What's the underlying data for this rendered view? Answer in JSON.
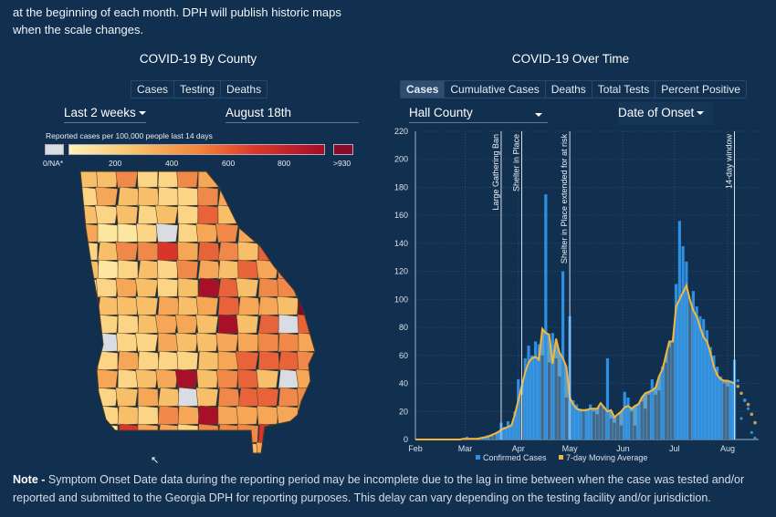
{
  "intro_text": [
    "at the beginning of each month. DPH will publish historic maps",
    "when the scale changes."
  ],
  "county_panel": {
    "title": "COVID-19 By County",
    "tabs": [
      {
        "label": "Cases",
        "active": false
      },
      {
        "label": "Testing",
        "active": false
      },
      {
        "label": "Deaths",
        "active": false
      }
    ],
    "period_dropdown": "Last 2 weeks",
    "date_dropdown": "August 18th",
    "legend": {
      "title": "Reported cases per 100,000 people last 14 days",
      "na_label": "0/NA*",
      "ticks": [
        "200",
        "400",
        "600",
        "800"
      ],
      "max_label": ">930",
      "colors": {
        "na": "#d9dde3",
        "low": "#fff3b8",
        "mid": "#f4a24a",
        "high": "#e0402a",
        "max": "#8a0a27"
      }
    }
  },
  "time_panel": {
    "title": "COVID-19 Over Time",
    "tabs": [
      {
        "label": "Cases",
        "active": true
      },
      {
        "label": "Cumulative Cases",
        "active": false
      },
      {
        "label": "Deaths",
        "active": false
      },
      {
        "label": "Total Tests",
        "active": false
      },
      {
        "label": "Percent Positive",
        "active": false
      }
    ],
    "county_dropdown": "Hall County",
    "date_type_dropdown": "Date of Onset"
  },
  "chart_data": {
    "type": "bar",
    "ylim": [
      0,
      220
    ],
    "yticks": [
      "0",
      "20",
      "40",
      "60",
      "80",
      "100",
      "120",
      "140",
      "160",
      "180",
      "200",
      "220"
    ],
    "xticks": [
      "Feb",
      "Mar",
      "Apr",
      "May",
      "Jun",
      "Jul",
      "Aug"
    ],
    "grid": true,
    "legend_position": "bottom",
    "colors": {
      "bars": "#2f8fe0",
      "area": "#6fb3dc",
      "average": "#f5b73b"
    },
    "x": [
      "Feb 1",
      "Feb 3",
      "Feb 5",
      "Feb 7",
      "Feb 9",
      "Feb 11",
      "Feb 13",
      "Feb 15",
      "Feb 17",
      "Feb 19",
      "Feb 21",
      "Feb 23",
      "Feb 25",
      "Feb 27",
      "Feb 29",
      "Mar 2",
      "Mar 4",
      "Mar 6",
      "Mar 8",
      "Mar 10",
      "Mar 12",
      "Mar 14",
      "Mar 16",
      "Mar 18",
      "Mar 20",
      "Mar 22",
      "Mar 24",
      "Mar 26",
      "Mar 28",
      "Mar 30",
      "Apr 1",
      "Apr 3",
      "Apr 5",
      "Apr 7",
      "Apr 9",
      "Apr 11",
      "Apr 13",
      "Apr 15",
      "Apr 17",
      "Apr 19",
      "Apr 21",
      "Apr 23",
      "Apr 25",
      "Apr 27",
      "Apr 29",
      "May 1",
      "May 3",
      "May 5",
      "May 7",
      "May 9",
      "May 11",
      "May 13",
      "May 15",
      "May 17",
      "May 19",
      "May 21",
      "May 23",
      "May 25",
      "May 27",
      "May 29",
      "May 31",
      "Jun 2",
      "Jun 4",
      "Jun 6",
      "Jun 8",
      "Jun 10",
      "Jun 12",
      "Jun 14",
      "Jun 16",
      "Jun 18",
      "Jun 20",
      "Jun 22",
      "Jun 24",
      "Jun 26",
      "Jun 28",
      "Jun 30",
      "Jul 2",
      "Jul 4",
      "Jul 6",
      "Jul 8",
      "Jul 10",
      "Jul 12",
      "Jul 14",
      "Jul 16",
      "Jul 18",
      "Jul 20",
      "Jul 22",
      "Jul 24",
      "Jul 26",
      "Jul 28",
      "Jul 30",
      "Aug 1",
      "Aug 3",
      "Aug 5"
    ],
    "series": [
      {
        "name": "Confirmed Cases",
        "values": [
          0,
          0,
          0,
          0,
          0,
          0,
          0,
          0,
          0,
          0,
          0,
          0,
          0,
          0,
          1,
          2,
          0,
          0,
          1,
          1,
          2,
          3,
          2,
          4,
          6,
          12,
          9,
          13,
          11,
          20,
          43,
          32,
          58,
          67,
          60,
          70,
          68,
          60,
          175,
          55,
          76,
          58,
          45,
          120,
          30,
          88,
          28,
          25,
          22,
          20,
          22,
          25,
          20,
          18,
          25,
          22,
          58,
          15,
          12,
          18,
          10,
          34,
          30,
          20,
          10,
          26,
          27,
          22,
          32,
          43,
          32,
          35,
          52,
          55,
          66,
          70,
          111,
          156,
          138,
          127,
          100,
          106,
          95,
          88,
          86,
          78,
          66,
          60,
          52,
          45,
          40,
          38,
          42,
          57
        ]
      },
      {
        "name": "7-day Moving Average",
        "values": [
          0,
          0,
          0,
          0,
          0,
          0,
          0,
          0,
          0,
          0,
          0,
          0,
          0,
          0,
          0.5,
          0.5,
          0.5,
          0.5,
          0.5,
          1,
          1.5,
          2,
          3,
          4,
          5,
          7,
          8,
          9,
          10,
          18,
          28,
          38,
          48,
          55,
          58,
          59,
          57,
          79,
          76,
          75,
          54,
          72,
          62,
          58,
          52,
          30,
          25,
          22,
          21,
          21,
          21,
          22,
          22,
          22,
          26,
          23,
          20,
          21,
          16,
          18,
          20,
          23,
          24,
          22,
          24,
          25,
          30,
          33,
          34,
          35,
          37,
          45,
          50,
          60,
          70,
          70,
          95,
          100,
          105,
          110,
          100,
          92,
          88,
          80,
          73,
          70,
          62,
          52,
          46,
          43,
          42,
          42,
          41,
          40
        ]
      }
    ],
    "incomplete_period": {
      "x": [
        "Aug 7",
        "Aug 9",
        "Aug 11",
        "Aug 13",
        "Aug 15",
        "Aug 17"
      ],
      "cases": [
        42,
        15,
        28,
        22,
        5,
        1
      ],
      "average": [
        38,
        33,
        28,
        25,
        18,
        12
      ]
    },
    "annotations": [
      {
        "date": "Mar 22",
        "label": "Large Gathering Ban"
      },
      {
        "date": "Apr 3",
        "label": "Shelter in Place"
      },
      {
        "date": "May 1",
        "label": "Shelter in Place extended for at risk"
      },
      {
        "date": "Aug 5",
        "label": "14-day window"
      }
    ]
  },
  "note": {
    "label": "Note -",
    "text": "Symptom Onset Date data during the reporting period may be incomplete due to the lag in time between when the case was tested and/or reported and submitted to the Georgia DPH for reporting purposes. This delay can vary depending on the testing facility and/or jurisdiction."
  }
}
